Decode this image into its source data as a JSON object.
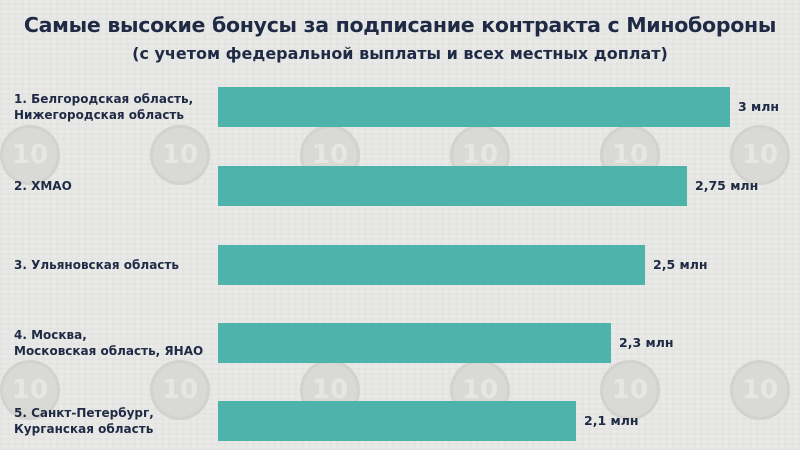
{
  "header": {
    "title": "Самые высокие бонусы за подписание контракта с Минобороны",
    "subtitle": "(с учетом федеральной выплаты и всех местных доплат)"
  },
  "watermark_text": "10",
  "colors": {
    "bar": "#4db3ab",
    "text": "#1f2a44",
    "background": "#e9e9e7"
  },
  "chart_data": {
    "type": "bar",
    "orientation": "horizontal",
    "title": "Самые высокие бонусы за подписание контракта с Минобороны",
    "subtitle": "(с учетом федеральной выплаты и всех местных доплат)",
    "categories": [
      [
        "1.  Белгородская область,",
        "Нижегородская область"
      ],
      [
        "2. ХМАО"
      ],
      [
        "3. Ульяновская область"
      ],
      [
        "4. Москва,",
        "Московская область, ЯНАО"
      ],
      [
        "5. Санкт-Петербург,",
        "Курганская область"
      ]
    ],
    "values": [
      3,
      2.75,
      2.5,
      2.3,
      2.1
    ],
    "value_labels": [
      "3 млн",
      "2,75 млн",
      "2,5 млн",
      "2,3 млн",
      "2,1 млн"
    ],
    "xlim": [
      0,
      3
    ],
    "grid": false,
    "legend": "none"
  }
}
